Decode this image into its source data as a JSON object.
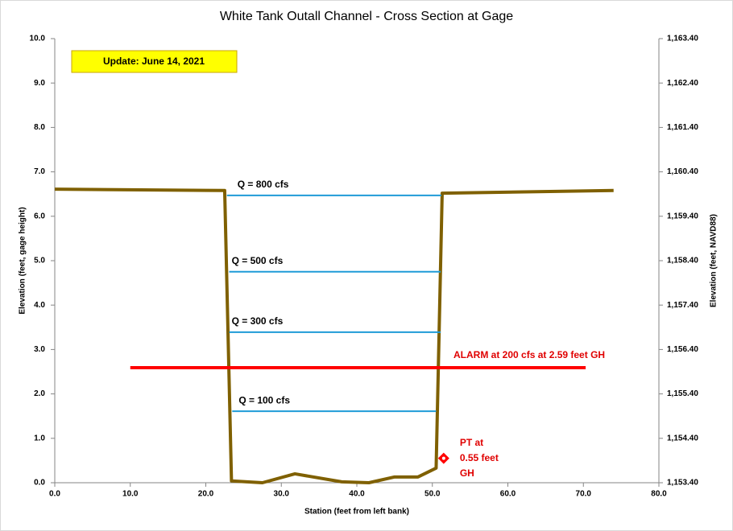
{
  "chart_data": {
    "type": "line",
    "title": "White Tank Outall Channel - Cross Section at Gage",
    "xlabel": "Station (feet from left bank)",
    "ylabel": "Elevation (feet, gage height)",
    "y2label": "Elevation (feet, NAVD88)",
    "update_note": "Update: June 14, 2021",
    "xlim": [
      0,
      80
    ],
    "ylim": [
      0,
      10
    ],
    "y2lim": [
      1153.4,
      1163.4
    ],
    "xticks": [
      {
        "value": 0,
        "label": "0.0"
      },
      {
        "value": 10,
        "label": "10.0"
      },
      {
        "value": 20,
        "label": "20.0"
      },
      {
        "value": 30,
        "label": "30.0"
      },
      {
        "value": 40,
        "label": "40.0"
      },
      {
        "value": 50,
        "label": "50.0"
      },
      {
        "value": 60,
        "label": "60.0"
      },
      {
        "value": 70,
        "label": "70.0"
      },
      {
        "value": 80,
        "label": "80.0"
      }
    ],
    "yticks": [
      {
        "value": 0,
        "label": "0.0"
      },
      {
        "value": 1,
        "label": "1.0"
      },
      {
        "value": 2,
        "label": "2.0"
      },
      {
        "value": 3,
        "label": "3.0"
      },
      {
        "value": 4,
        "label": "4.0"
      },
      {
        "value": 5,
        "label": "5.0"
      },
      {
        "value": 6,
        "label": "6.0"
      },
      {
        "value": 7,
        "label": "7.0"
      },
      {
        "value": 8,
        "label": "8.0"
      },
      {
        "value": 9,
        "label": "9.0"
      },
      {
        "value": 10,
        "label": "10.0"
      }
    ],
    "y2ticks": [
      {
        "value": 1153.4,
        "label": "1,153.40"
      },
      {
        "value": 1154.4,
        "label": "1,154.40"
      },
      {
        "value": 1155.4,
        "label": "1,155.40"
      },
      {
        "value": 1156.4,
        "label": "1,156.40"
      },
      {
        "value": 1157.4,
        "label": "1,157.40"
      },
      {
        "value": 1158.4,
        "label": "1,158.40"
      },
      {
        "value": 1159.4,
        "label": "1,159.40"
      },
      {
        "value": 1160.4,
        "label": "1,160.40"
      },
      {
        "value": 1161.4,
        "label": "1,161.40"
      },
      {
        "value": 1162.4,
        "label": "1,162.40"
      },
      {
        "value": 1163.4,
        "label": "1,163.40"
      }
    ],
    "cross_section": {
      "color": "#7f6000",
      "x": [
        0,
        22.5,
        23.4,
        27.5,
        31.8,
        38,
        41.6,
        45,
        48.1,
        50.5,
        51.3,
        74
      ],
      "values": [
        6.61,
        6.58,
        0.04,
        0,
        0.2,
        0.02,
        0,
        0.13,
        0.13,
        0.33,
        6.52,
        6.58
      ]
    },
    "flow_lines": [
      {
        "label": "Q = 800  cfs",
        "color": "#1f9bd7",
        "x": [
          22.8,
          51.2
        ],
        "values": [
          6.47,
          6.47
        ]
      },
      {
        "label": "Q = 500  cfs",
        "color": "#1f9bd7",
        "x": [
          23.1,
          51.1
        ],
        "values": [
          4.75,
          4.75
        ]
      },
      {
        "label": "Q = 300  cfs",
        "color": "#1f9bd7",
        "x": [
          23.1,
          51.1
        ],
        "values": [
          3.39,
          3.39
        ]
      },
      {
        "label": "Q = 100  cfs",
        "color": "#1f9bd7",
        "x": [
          23.5,
          50.5
        ],
        "values": [
          1.61,
          1.61
        ]
      }
    ],
    "alarm": {
      "label": "ALARM at 200  cfs at 2.59 feet GH",
      "color": "#ff0000",
      "x": [
        10,
        70.3
      ],
      "values": [
        2.59,
        2.59
      ]
    },
    "pt": {
      "label": [
        "PT at",
        "0.55 feet",
        "GH"
      ],
      "color": "#ff0000",
      "x": 51.5,
      "value": 0.55
    }
  }
}
